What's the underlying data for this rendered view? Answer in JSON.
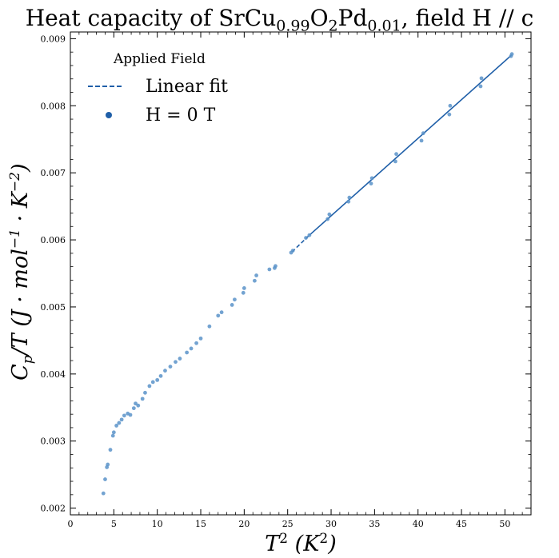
{
  "chart_data": {
    "type": "scatter",
    "title_main": "Heat capacity of SrCu",
    "title_sub1": "0.99",
    "title_mid": "O",
    "title_sub2": "2",
    "title_mid2": "Pd",
    "title_sub3": "0.01",
    "title_tail": ", field H // c",
    "xlabel_main": "T",
    "xlabel_sup": "2",
    "xlabel_unit": " (K",
    "xlabel_unit_sup": "2",
    "xlabel_close": ")",
    "ylabel_main": "C",
    "ylabel_sub": "p",
    "ylabel_mid": "/T (J · mol",
    "ylabel_sup1": "−1",
    "ylabel_mid2": " · K",
    "ylabel_sup2": "−2",
    "ylabel_close": ")",
    "xlim": [
      0,
      53
    ],
    "ylim": [
      0.0019,
      0.0091
    ],
    "x_ticks": [
      0,
      5,
      10,
      15,
      20,
      25,
      30,
      35,
      40,
      45,
      50
    ],
    "y_ticks": [
      0.002,
      0.003,
      0.004,
      0.005,
      0.006,
      0.007,
      0.008,
      0.009
    ],
    "y_tick_labels": [
      "0.002",
      "0.003",
      "0.004",
      "0.005",
      "0.006",
      "0.007",
      "0.008",
      "0.009"
    ],
    "legend": {
      "title": "Applied Field",
      "position": "top-left",
      "entries": [
        {
          "label": "Linear fit",
          "style": "dashed-line"
        },
        {
          "label": "H = 0 T",
          "style": "dot"
        }
      ]
    },
    "colors": {
      "series": "#1f5fa8",
      "points": "#5b93c9"
    },
    "fit": {
      "dashed_x": [
        25.5,
        27.5
      ],
      "dashed_y": [
        0.00582,
        0.00607
      ],
      "solid_x": [
        27.5,
        50.8
      ],
      "solid_y": [
        0.00607,
        0.00876
      ]
    },
    "series": [
      {
        "name": "H = 0 T",
        "x": [
          3.8,
          4.0,
          4.2,
          4.3,
          4.6,
          4.9,
          5.0,
          5.3,
          5.6,
          5.9,
          6.2,
          6.6,
          6.9,
          7.3,
          7.5,
          7.8,
          8.3,
          8.6,
          9.1,
          9.5,
          10.0,
          10.4,
          10.9,
          11.5,
          12.1,
          12.6,
          13.4,
          13.9,
          14.5,
          15.0,
          16.0,
          17.0,
          17.4,
          18.6,
          18.9,
          19.9,
          20.0,
          21.2,
          21.4,
          22.9,
          23.5,
          23.6,
          25.4,
          25.6,
          27.1,
          27.5,
          29.6,
          29.8,
          32.0,
          32.1,
          34.6,
          34.7,
          37.4,
          37.5,
          40.4,
          40.6,
          43.6,
          43.7,
          47.2,
          47.3,
          50.7,
          50.8
        ],
        "y": [
          0.00222,
          0.00243,
          0.00261,
          0.00265,
          0.00287,
          0.00308,
          0.00313,
          0.00323,
          0.00327,
          0.00332,
          0.00338,
          0.00341,
          0.00339,
          0.00349,
          0.00356,
          0.00353,
          0.00363,
          0.00372,
          0.00382,
          0.00388,
          0.00391,
          0.00397,
          0.00405,
          0.00411,
          0.00418,
          0.00423,
          0.00432,
          0.00438,
          0.00446,
          0.00453,
          0.00471,
          0.00487,
          0.00492,
          0.00503,
          0.00511,
          0.00521,
          0.00528,
          0.00539,
          0.00547,
          0.00556,
          0.00558,
          0.00561,
          0.00581,
          0.00584,
          0.00603,
          0.00607,
          0.00631,
          0.00638,
          0.00657,
          0.00663,
          0.00684,
          0.00692,
          0.00717,
          0.00728,
          0.00748,
          0.00759,
          0.00787,
          0.008,
          0.00829,
          0.00841,
          0.00874,
          0.00877
        ]
      }
    ]
  }
}
